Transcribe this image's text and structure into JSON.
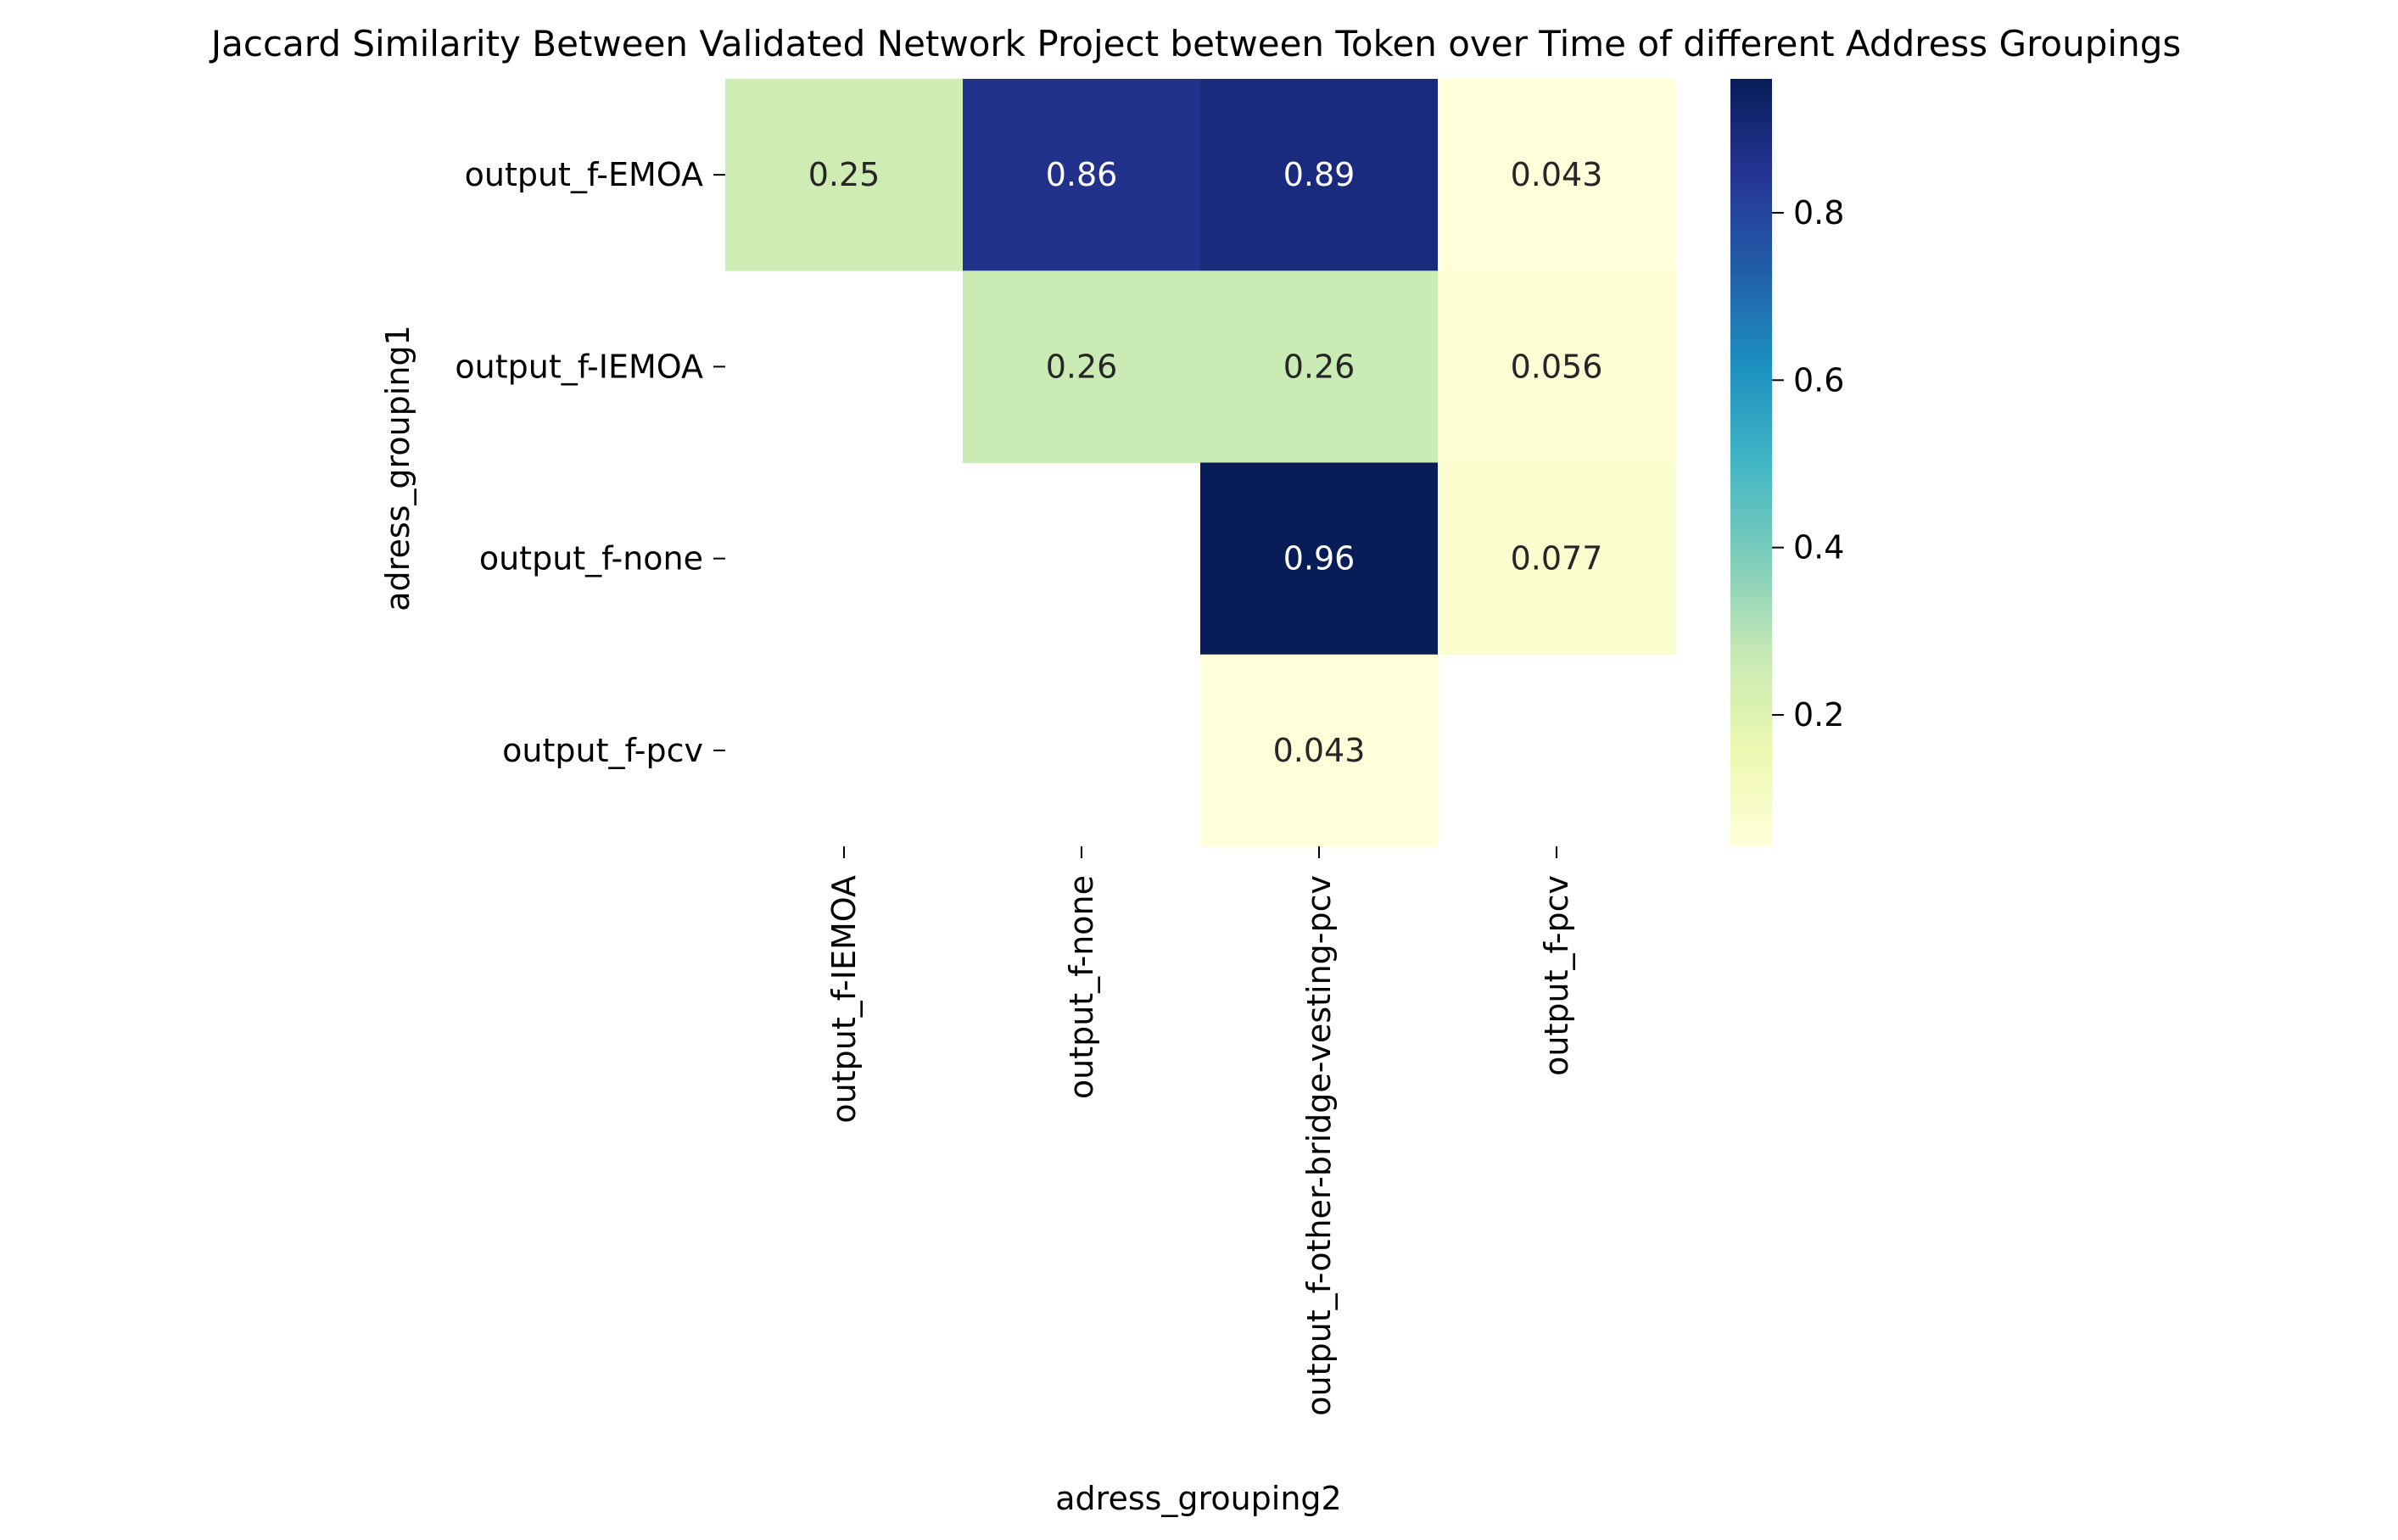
{
  "chart_data": {
    "type": "heatmap",
    "title": "Jaccard Similarity Between Validated Network Project between Token over Time of different Address Groupings",
    "xlabel": "adress_grouping2",
    "ylabel": "adress_grouping1",
    "x_categories": [
      "output_f-IEMOA",
      "output_f-none",
      "output_f-other-bridge-vesting-pcv",
      "output_f-pcv"
    ],
    "y_categories": [
      "output_f-EMOA",
      "output_f-IEMOA",
      "output_f-none",
      "output_f-pcv"
    ],
    "values": [
      [
        0.25,
        0.86,
        0.89,
        0.043
      ],
      [
        null,
        0.26,
        0.26,
        0.056
      ],
      [
        null,
        null,
        0.96,
        0.077
      ],
      [
        null,
        null,
        0.043,
        null
      ]
    ],
    "value_labels": [
      [
        "0.25",
        "0.86",
        "0.89",
        "0.043"
      ],
      [
        "",
        "0.26",
        "0.26",
        "0.056"
      ],
      [
        "",
        "",
        "0.96",
        "0.077"
      ],
      [
        "",
        "",
        "0.043",
        ""
      ]
    ],
    "colormap": "YlGnBu",
    "vmin": 0.043,
    "vmax": 0.96,
    "colorbar_ticks": [
      "0.2",
      "0.4",
      "0.6",
      "0.8"
    ],
    "colorbar_tick_values": [
      0.2,
      0.4,
      0.6,
      0.8
    ],
    "legend_placement": "right",
    "grid": false
  }
}
